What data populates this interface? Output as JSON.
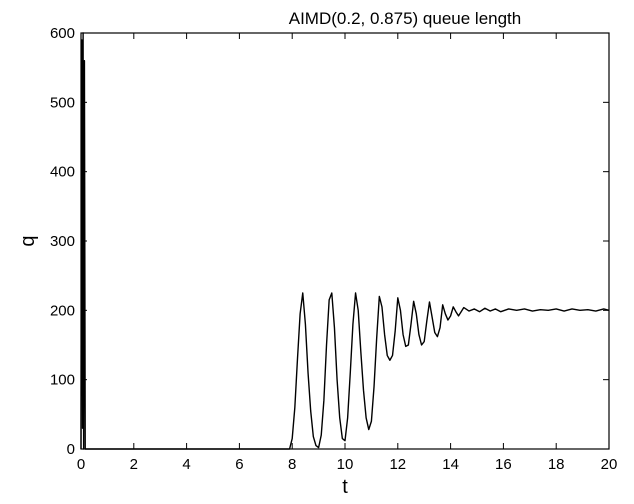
{
  "chart_data": {
    "type": "line",
    "title": "AIMD(0.2, 0.875) queue length",
    "xlabel": "t",
    "ylabel": "q",
    "xlim": [
      0,
      20
    ],
    "ylim": [
      0,
      600
    ],
    "xticks": [
      0,
      2,
      4,
      6,
      8,
      10,
      12,
      14,
      16,
      18,
      20
    ],
    "yticks": [
      0,
      100,
      200,
      300,
      400,
      500,
      600
    ],
    "xtick_labels": [
      "0",
      "2",
      "4",
      "6",
      "8",
      "10",
      "12",
      "14",
      "16",
      "18",
      "20"
    ],
    "ytick_labels": [
      "0",
      "100",
      "200",
      "300",
      "400",
      "500",
      "600"
    ],
    "grid": false,
    "line_color": "#000000",
    "series": [
      {
        "x": [
          0.0,
          0.03,
          0.06,
          0.08,
          0.1,
          0.13,
          0.16,
          0.2,
          2.0,
          4.0,
          6.0,
          7.9,
          8.0,
          8.1,
          8.2,
          8.3,
          8.4,
          8.5,
          8.6,
          8.7,
          8.8,
          8.9,
          9.0,
          9.1,
          9.2,
          9.3,
          9.4,
          9.5,
          9.6,
          9.7,
          9.8,
          9.9,
          10.0,
          10.1,
          10.2,
          10.3,
          10.4,
          10.5,
          10.6,
          10.7,
          10.8,
          10.9,
          11.0,
          11.1,
          11.2,
          11.3,
          11.4,
          11.5,
          11.6,
          11.7,
          11.8,
          11.9,
          12.0,
          12.1,
          12.2,
          12.3,
          12.4,
          12.5,
          12.6,
          12.7,
          12.8,
          12.9,
          13.0,
          13.1,
          13.2,
          13.3,
          13.4,
          13.5,
          13.6,
          13.7,
          13.8,
          13.9,
          14.0,
          14.1,
          14.2,
          14.3,
          14.4,
          14.5,
          14.7,
          14.9,
          15.1,
          15.3,
          15.5,
          15.7,
          15.9,
          16.2,
          16.5,
          16.8,
          17.1,
          17.4,
          17.7,
          18.0,
          18.3,
          18.6,
          18.9,
          19.2,
          19.5,
          19.8,
          20.0
        ],
        "y": [
          0,
          590,
          30,
          600,
          0,
          560,
          0,
          0,
          0,
          0,
          0,
          0,
          15,
          60,
          130,
          195,
          225,
          180,
          110,
          55,
          18,
          5,
          2,
          20,
          70,
          150,
          215,
          225,
          175,
          100,
          45,
          15,
          12,
          45,
          110,
          180,
          225,
          200,
          140,
          85,
          45,
          28,
          40,
          90,
          160,
          220,
          205,
          165,
          135,
          128,
          135,
          170,
          218,
          200,
          165,
          148,
          150,
          180,
          213,
          195,
          165,
          150,
          155,
          185,
          212,
          190,
          168,
          162,
          175,
          208,
          195,
          186,
          192,
          205,
          198,
          192,
          198,
          204,
          199,
          202,
          198,
          203,
          199,
          202,
          198,
          202,
          200,
          202,
          199,
          201,
          200,
          202,
          199,
          202,
          200,
          201,
          199,
          202,
          200
        ]
      }
    ]
  }
}
